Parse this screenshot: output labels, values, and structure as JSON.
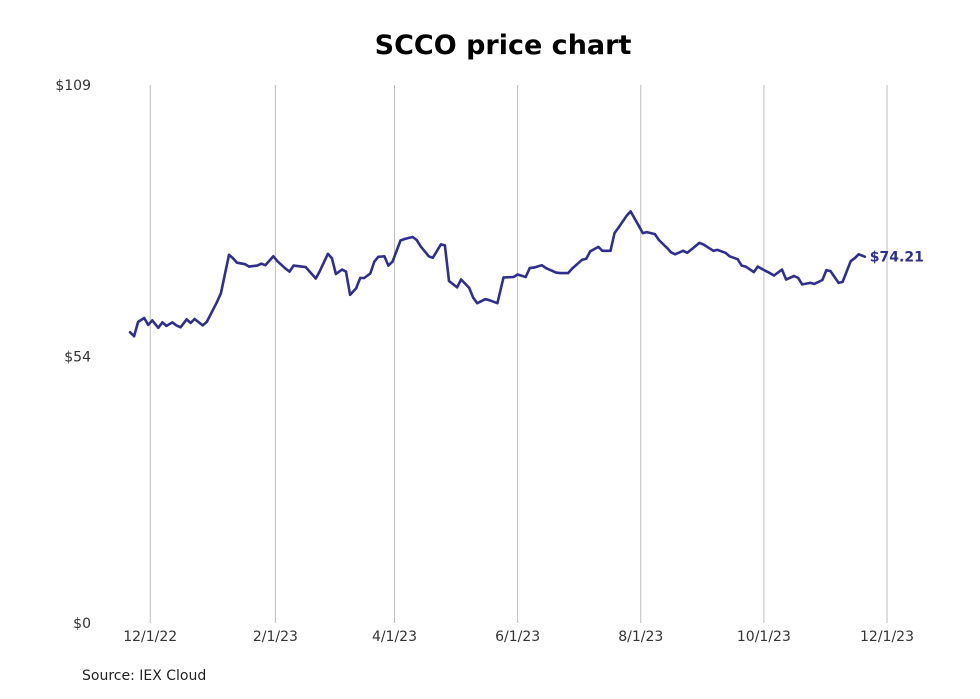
{
  "chart_data": {
    "type": "line",
    "title": "SCCO price chart",
    "source": "Source: IEX Cloud",
    "x_axis": {
      "ticks": [
        "12/1/22",
        "2/1/23",
        "4/1/23",
        "6/1/23",
        "8/1/23",
        "10/1/23",
        "12/1/23"
      ],
      "range": [
        "2022-11-18",
        "2023-12-01"
      ]
    },
    "y_axis": {
      "ticks": [
        0,
        54,
        109
      ],
      "tick_labels": [
        "$0",
        "$54",
        "$109"
      ],
      "range": [
        0,
        109
      ]
    },
    "grid": {
      "vertical": true,
      "horizontal": false
    },
    "series": [
      {
        "color": "#2f2f8f",
        "last_value_label": "$74.21",
        "points": [
          [
            "2022-11-21",
            58.9
          ],
          [
            "2022-11-23",
            58.1
          ],
          [
            "2022-11-25",
            61.0
          ],
          [
            "2022-11-28",
            61.8
          ],
          [
            "2022-11-30",
            60.4
          ],
          [
            "2022-12-02",
            61.3
          ],
          [
            "2022-12-05",
            59.8
          ],
          [
            "2022-12-07",
            60.9
          ],
          [
            "2022-12-09",
            60.2
          ],
          [
            "2022-12-12",
            60.9
          ],
          [
            "2022-12-14",
            60.3
          ],
          [
            "2022-12-16",
            59.9
          ],
          [
            "2022-12-19",
            61.5
          ],
          [
            "2022-12-21",
            60.8
          ],
          [
            "2022-12-23",
            61.6
          ],
          [
            "2022-12-27",
            60.3
          ],
          [
            "2022-12-29",
            61.0
          ],
          [
            "2023-01-03",
            65.0
          ],
          [
            "2023-01-05",
            66.8
          ],
          [
            "2023-01-09",
            74.6
          ],
          [
            "2023-01-11",
            73.9
          ],
          [
            "2023-01-13",
            73.0
          ],
          [
            "2023-01-17",
            72.7
          ],
          [
            "2023-01-19",
            72.2
          ],
          [
            "2023-01-23",
            72.4
          ],
          [
            "2023-01-25",
            72.8
          ],
          [
            "2023-01-27",
            72.5
          ],
          [
            "2023-01-31",
            74.3
          ],
          [
            "2023-02-02",
            73.3
          ],
          [
            "2023-02-06",
            71.8
          ],
          [
            "2023-02-08",
            71.2
          ],
          [
            "2023-02-10",
            72.4
          ],
          [
            "2023-02-14",
            72.2
          ],
          [
            "2023-02-16",
            72.1
          ],
          [
            "2023-02-21",
            69.8
          ],
          [
            "2023-02-23",
            71.3
          ],
          [
            "2023-02-27",
            74.8
          ],
          [
            "2023-03-01",
            73.9
          ],
          [
            "2023-03-03",
            70.7
          ],
          [
            "2023-03-06",
            71.6
          ],
          [
            "2023-03-08",
            71.2
          ],
          [
            "2023-03-10",
            66.5
          ],
          [
            "2023-03-13",
            67.8
          ],
          [
            "2023-03-15",
            69.9
          ],
          [
            "2023-03-17",
            69.9
          ],
          [
            "2023-03-20",
            70.8
          ],
          [
            "2023-03-22",
            73.2
          ],
          [
            "2023-03-24",
            74.2
          ],
          [
            "2023-03-27",
            74.3
          ],
          [
            "2023-03-29",
            72.4
          ],
          [
            "2023-03-31",
            73.2
          ],
          [
            "2023-04-04",
            77.5
          ],
          [
            "2023-04-06",
            77.8
          ],
          [
            "2023-04-10",
            78.2
          ],
          [
            "2023-04-12",
            77.6
          ],
          [
            "2023-04-14",
            76.3
          ],
          [
            "2023-04-18",
            74.3
          ],
          [
            "2023-04-20",
            74.0
          ],
          [
            "2023-04-24",
            76.7
          ],
          [
            "2023-04-26",
            76.5
          ],
          [
            "2023-04-28",
            69.3
          ],
          [
            "2023-05-02",
            68.0
          ],
          [
            "2023-05-04",
            69.6
          ],
          [
            "2023-05-08",
            67.9
          ],
          [
            "2023-05-10",
            65.9
          ],
          [
            "2023-05-12",
            64.8
          ],
          [
            "2023-05-16",
            65.6
          ],
          [
            "2023-05-18",
            65.4
          ],
          [
            "2023-05-22",
            64.8
          ],
          [
            "2023-05-25",
            70.0
          ],
          [
            "2023-05-30",
            70.1
          ],
          [
            "2023-06-01",
            70.6
          ],
          [
            "2023-06-05",
            70.1
          ],
          [
            "2023-06-07",
            71.9
          ],
          [
            "2023-06-09",
            72.0
          ],
          [
            "2023-06-13",
            72.5
          ],
          [
            "2023-06-15",
            71.9
          ],
          [
            "2023-06-20",
            71.0
          ],
          [
            "2023-06-22",
            70.9
          ],
          [
            "2023-06-26",
            70.9
          ],
          [
            "2023-06-28",
            71.8
          ],
          [
            "2023-07-03",
            73.6
          ],
          [
            "2023-07-05",
            73.8
          ],
          [
            "2023-07-07",
            75.3
          ],
          [
            "2023-07-11",
            76.2
          ],
          [
            "2023-07-13",
            75.4
          ],
          [
            "2023-07-17",
            75.4
          ],
          [
            "2023-07-19",
            79.0
          ],
          [
            "2023-07-21",
            80.1
          ],
          [
            "2023-07-25",
            82.5
          ],
          [
            "2023-07-27",
            83.4
          ],
          [
            "2023-07-31",
            80.5
          ],
          [
            "2023-08-02",
            79.0
          ],
          [
            "2023-08-04",
            79.2
          ],
          [
            "2023-08-08",
            78.8
          ],
          [
            "2023-08-10",
            77.6
          ],
          [
            "2023-08-14",
            76.0
          ],
          [
            "2023-08-16",
            75.1
          ],
          [
            "2023-08-18",
            74.7
          ],
          [
            "2023-08-22",
            75.4
          ],
          [
            "2023-08-24",
            75.0
          ],
          [
            "2023-08-28",
            76.3
          ],
          [
            "2023-08-30",
            77.0
          ],
          [
            "2023-09-01",
            76.7
          ],
          [
            "2023-09-06",
            75.4
          ],
          [
            "2023-09-08",
            75.6
          ],
          [
            "2023-09-12",
            75.0
          ],
          [
            "2023-09-14",
            74.3
          ],
          [
            "2023-09-18",
            73.7
          ],
          [
            "2023-09-20",
            72.4
          ],
          [
            "2023-09-22",
            72.2
          ],
          [
            "2023-09-26",
            71.1
          ],
          [
            "2023-09-28",
            72.2
          ],
          [
            "2023-10-02",
            71.3
          ],
          [
            "2023-10-04",
            70.9
          ],
          [
            "2023-10-06",
            70.4
          ],
          [
            "2023-10-10",
            71.6
          ],
          [
            "2023-10-12",
            69.6
          ],
          [
            "2023-10-16",
            70.3
          ],
          [
            "2023-10-18",
            69.9
          ],
          [
            "2023-10-20",
            68.6
          ],
          [
            "2023-10-24",
            68.9
          ],
          [
            "2023-10-26",
            68.7
          ],
          [
            "2023-10-30",
            69.5
          ],
          [
            "2023-11-01",
            71.5
          ],
          [
            "2023-11-03",
            71.3
          ],
          [
            "2023-11-07",
            68.9
          ],
          [
            "2023-11-09",
            69.1
          ],
          [
            "2023-11-13",
            73.3
          ],
          [
            "2023-11-15",
            73.9
          ],
          [
            "2023-11-17",
            74.7
          ],
          [
            "2023-11-20",
            74.21
          ]
        ]
      }
    ],
    "axis_range_note": "",
    "legend": "none"
  }
}
